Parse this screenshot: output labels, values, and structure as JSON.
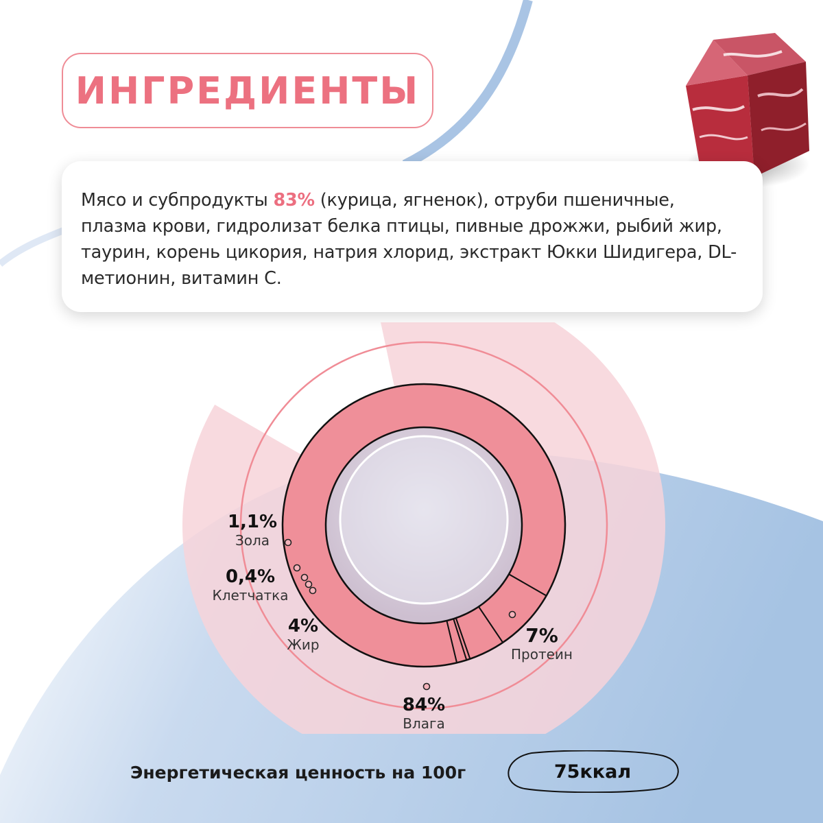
{
  "title": "ИНГРЕДИЕНТЫ",
  "ingredients": {
    "prefix": "Мясо и субпродукты ",
    "highlight": "83%",
    "rest": " (курица, ягненок), отруби пшеничные, плазма крови, гидролизат белка птицы, пивные дрожжи, рыбий жир, таурин, корень цикория, натрия хлорид, экстракт Юкки Шидигера, DL-метионин, витамин С."
  },
  "chart_data": {
    "type": "pie",
    "categories": [
      "Влага",
      "Протеин",
      "Жир",
      "Клетчатка",
      "Зола"
    ],
    "values": [
      84,
      7,
      4,
      0.4,
      1.1
    ],
    "value_labels": [
      "84%",
      "7%",
      "4%",
      "0,4%",
      "1,1%"
    ]
  },
  "energy": {
    "label": "Энергетическая ценность на 100г",
    "value": "75ккал"
  },
  "colors": {
    "accent": "#ec7180",
    "ring": "#ef8f99",
    "blue": "#a9c4e4",
    "wedge": "#f7d3d9"
  },
  "icons": [
    "meat-image"
  ]
}
